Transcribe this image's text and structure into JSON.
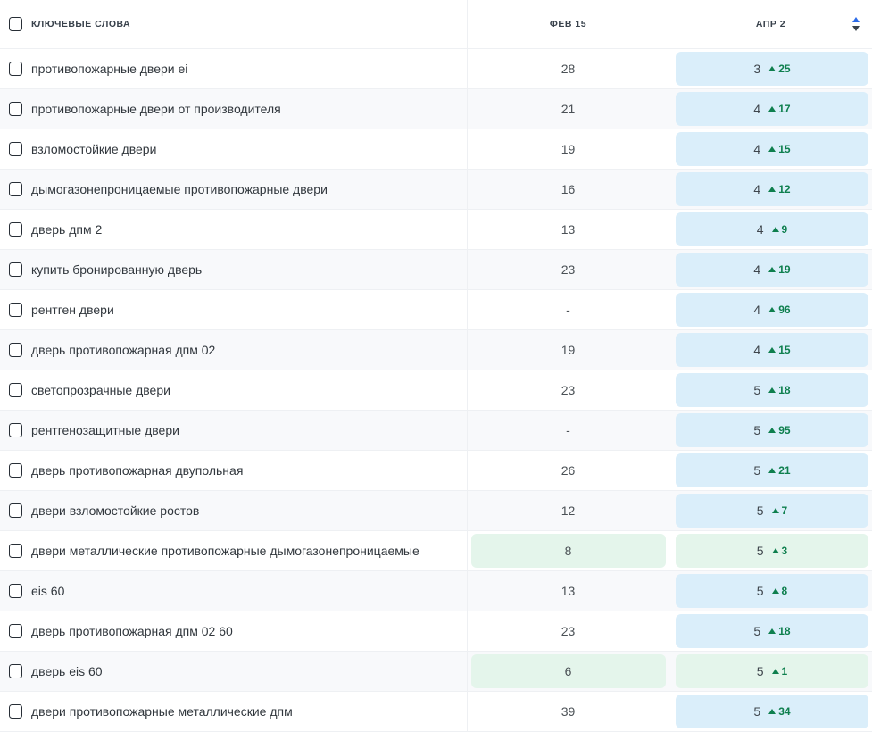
{
  "table": {
    "header": {
      "keywords_label": "КЛЮЧЕВЫЕ СЛОВА",
      "col_feb": "ФЕВ 15",
      "col_apr": "АПР 2",
      "sort_state": "ascending-active"
    },
    "rows": [
      {
        "keyword": "противопожарные двери ei",
        "feb": "28",
        "feb_style": "plain",
        "apr_pos": "3",
        "apr_delta": "25",
        "apr_style": "blue"
      },
      {
        "keyword": "противопожарные двери от производителя",
        "feb": "21",
        "feb_style": "plain",
        "apr_pos": "4",
        "apr_delta": "17",
        "apr_style": "blue"
      },
      {
        "keyword": "взломостойкие двери",
        "feb": "19",
        "feb_style": "plain",
        "apr_pos": "4",
        "apr_delta": "15",
        "apr_style": "blue"
      },
      {
        "keyword": "дымогазонепроницаемые противопожарные двери",
        "feb": "16",
        "feb_style": "plain",
        "apr_pos": "4",
        "apr_delta": "12",
        "apr_style": "blue"
      },
      {
        "keyword": "дверь дпм 2",
        "feb": "13",
        "feb_style": "plain",
        "apr_pos": "4",
        "apr_delta": "9",
        "apr_style": "blue"
      },
      {
        "keyword": "купить бронированную дверь",
        "feb": "23",
        "feb_style": "plain",
        "apr_pos": "4",
        "apr_delta": "19",
        "apr_style": "blue"
      },
      {
        "keyword": "рентген двери",
        "feb": "-",
        "feb_style": "plain",
        "apr_pos": "4",
        "apr_delta": "96",
        "apr_style": "blue"
      },
      {
        "keyword": "дверь противопожарная дпм 02",
        "feb": "19",
        "feb_style": "plain",
        "apr_pos": "4",
        "apr_delta": "15",
        "apr_style": "blue"
      },
      {
        "keyword": "светопрозрачные двери",
        "feb": "23",
        "feb_style": "plain",
        "apr_pos": "5",
        "apr_delta": "18",
        "apr_style": "blue"
      },
      {
        "keyword": "рентгенозащитные двери",
        "feb": "-",
        "feb_style": "plain",
        "apr_pos": "5",
        "apr_delta": "95",
        "apr_style": "blue"
      },
      {
        "keyword": "дверь противопожарная двупольная",
        "feb": "26",
        "feb_style": "plain",
        "apr_pos": "5",
        "apr_delta": "21",
        "apr_style": "blue"
      },
      {
        "keyword": "двери взломостойкие ростов",
        "feb": "12",
        "feb_style": "plain",
        "apr_pos": "5",
        "apr_delta": "7",
        "apr_style": "blue"
      },
      {
        "keyword": "двери металлические противопожарные дымогазонепроницаемые",
        "feb": "8",
        "feb_style": "green",
        "apr_pos": "5",
        "apr_delta": "3",
        "apr_style": "green"
      },
      {
        "keyword": "eis 60",
        "feb": "13",
        "feb_style": "plain",
        "apr_pos": "5",
        "apr_delta": "8",
        "apr_style": "blue"
      },
      {
        "keyword": "дверь противопожарная дпм 02 60",
        "feb": "23",
        "feb_style": "plain",
        "apr_pos": "5",
        "apr_delta": "18",
        "apr_style": "blue"
      },
      {
        "keyword": "дверь eis 60",
        "feb": "6",
        "feb_style": "green",
        "apr_pos": "5",
        "apr_delta": "1",
        "apr_style": "green"
      },
      {
        "keyword": "двери противопожарные металлические дпм",
        "feb": "39",
        "feb_style": "plain",
        "apr_pos": "5",
        "apr_delta": "34",
        "apr_style": "blue"
      }
    ]
  },
  "colors": {
    "pill_blue": "#daeefa",
    "pill_green": "#e4f5eb",
    "delta_green": "#0e7f4e",
    "sort_active_blue": "#2a6ae8",
    "row_stripe": "#f8f9fb",
    "grid_line": "#eef0f3"
  }
}
